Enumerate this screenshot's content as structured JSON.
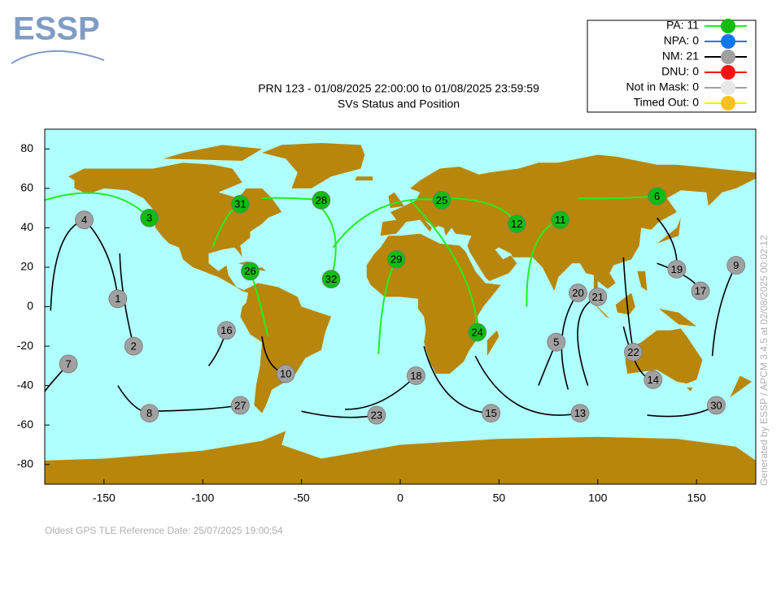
{
  "logo": "ESSP",
  "footer": "Oldest GPS TLE Reference Date: 25/07/2025 19:00:54",
  "side_note": "Generated by ESSP / APCM 3.4.5 at 02/08/2025 00:02:12",
  "chart_data": {
    "type": "scatter",
    "title": "PRN 123 - 01/08/2025 22:00:00 to 01/08/2025 23:59:59",
    "subtitle": "SVs Status and Position",
    "xlim": [
      -180,
      180
    ],
    "ylim": [
      -90,
      90
    ],
    "xticks": [
      -150,
      -100,
      -50,
      0,
      50,
      100,
      150
    ],
    "yticks": [
      -80,
      -60,
      -40,
      -20,
      0,
      20,
      40,
      60,
      80
    ],
    "background": "#b0ffff",
    "land_color": "#b8860b",
    "series": [
      {
        "name": "PA: 11",
        "color": "#11bb11",
        "line_color": "#22ee22",
        "labels": [
          "3",
          "31",
          "28",
          "26",
          "32",
          "29",
          "25",
          "12",
          "11",
          "6",
          "24"
        ],
        "x": [
          -127,
          -81,
          -40,
          -76,
          -35,
          -2,
          21,
          59,
          81,
          130,
          39
        ],
        "y": [
          45,
          52,
          54,
          18,
          14,
          24,
          54,
          42,
          44,
          56,
          -13
        ],
        "tracks": [
          {
            "x": [
              -180,
              -150,
              -127
            ],
            "y": [
              54,
              57,
              45
            ]
          },
          {
            "x": [
              -95,
              -88,
              -81
            ],
            "y": [
              30,
              45,
              52
            ]
          },
          {
            "x": [
              -70,
              -55,
              -40
            ],
            "y": [
              55,
              55,
              54
            ]
          },
          {
            "x": [
              -67,
              -72,
              -76
            ],
            "y": [
              -15,
              5,
              18
            ]
          },
          {
            "x": [
              -40,
              -33,
              -35
            ],
            "y": [
              50,
              35,
              14
            ]
          },
          {
            "x": [
              -11,
              -8,
              -2
            ],
            "y": [
              -24,
              5,
              24
            ]
          },
          {
            "x": [
              -34,
              -10,
              21
            ],
            "y": [
              30,
              50,
              54
            ]
          },
          {
            "x": [
              20,
              45,
              59
            ],
            "y": [
              55,
              52,
              42
            ]
          },
          {
            "x": [
              64,
              68,
              81
            ],
            "y": [
              0,
              30,
              44
            ]
          },
          {
            "x": [
              90,
              110,
              130
            ],
            "y": [
              55,
              55,
              56
            ]
          },
          {
            "x": [
              5,
              30,
              39
            ],
            "y": [
              54,
              20,
              -13
            ]
          }
        ]
      },
      {
        "name": "NPA: 0",
        "color": "#1177ee",
        "line_color": "#1177ee",
        "labels": [],
        "x": [],
        "y": [],
        "tracks": []
      },
      {
        "name": "NM: 21",
        "color": "#a0a0a0",
        "line_color": "#000000",
        "labels": [
          "4",
          "1",
          "2",
          "7",
          "16",
          "8",
          "27",
          "10",
          "23",
          "18",
          "15",
          "13",
          "5",
          "20",
          "21",
          "22",
          "14",
          "19",
          "17",
          "9",
          "30"
        ],
        "x": [
          -160,
          -143,
          -135,
          -168,
          -88,
          -127,
          -81,
          -58,
          -12,
          8,
          46,
          91,
          79,
          90,
          100,
          118,
          128,
          140,
          152,
          170,
          160
        ],
        "y": [
          44,
          4,
          -20,
          -29,
          -12,
          -54,
          -50,
          -34,
          -55,
          -35,
          -54,
          -54,
          -18,
          7,
          5,
          -23,
          -37,
          19,
          8,
          21,
          -50
        ],
        "tracks": [
          {
            "x": [
              -177,
              -172,
              -160
            ],
            "y": [
              -2,
              30,
              44
            ]
          },
          {
            "x": [
              -158,
              -148,
              -143
            ],
            "y": [
              42,
              25,
              4
            ]
          },
          {
            "x": [
              -142,
              -140,
              -135
            ],
            "y": [
              27,
              5,
              -20
            ]
          },
          {
            "x": [
              -180,
              -176,
              -168
            ],
            "y": [
              -43,
              -38,
              -29
            ]
          },
          {
            "x": [
              -97,
              -92,
              -88
            ],
            "y": [
              -30,
              -22,
              -12
            ]
          },
          {
            "x": [
              -143,
              -135,
              -127
            ],
            "y": [
              -40,
              -50,
              -54
            ]
          },
          {
            "x": [
              -125,
              -100,
              -81
            ],
            "y": [
              -53,
              -52,
              -50
            ]
          },
          {
            "x": [
              -70,
              -66,
              -58
            ],
            "y": [
              -15,
              -28,
              -34
            ]
          },
          {
            "x": [
              -50,
              -30,
              -12
            ],
            "y": [
              -53,
              -56,
              -55
            ]
          },
          {
            "x": [
              -28,
              -10,
              8
            ],
            "y": [
              -52,
              -48,
              -35
            ]
          },
          {
            "x": [
              12,
              25,
              46
            ],
            "y": [
              -20,
              -45,
              -54
            ]
          },
          {
            "x": [
              38,
              60,
              91
            ],
            "y": [
              -25,
              -50,
              -54
            ]
          },
          {
            "x": [
              70,
              74,
              79
            ],
            "y": [
              -40,
              -30,
              -18
            ]
          },
          {
            "x": [
              85,
              82,
              90
            ],
            "y": [
              -42,
              -15,
              7
            ]
          },
          {
            "x": [
              95,
              90,
              100
            ],
            "y": [
              -40,
              -10,
              5
            ]
          },
          {
            "x": [
              113,
              115,
              118
            ],
            "y": [
              25,
              0,
              -23
            ]
          },
          {
            "x": [
              113,
              120,
              128
            ],
            "y": [
              -10,
              -30,
              -37
            ]
          },
          {
            "x": [
              130,
              138,
              140
            ],
            "y": [
              45,
              32,
              19
            ]
          },
          {
            "x": [
              130,
              145,
              152
            ],
            "y": [
              22,
              15,
              8
            ]
          },
          {
            "x": [
              158,
              162,
              170
            ],
            "y": [
              -25,
              0,
              21
            ]
          },
          {
            "x": [
              125,
              145,
              160
            ],
            "y": [
              -55,
              -55,
              -50
            ]
          }
        ]
      },
      {
        "name": "DNU: 0",
        "color": "#ff1111",
        "line_color": "#ff1111",
        "labels": [],
        "x": [],
        "y": [],
        "tracks": []
      },
      {
        "name": "Not in Mask: 0",
        "color": "#e8e8e8",
        "line_color": "#a0a0a0",
        "labels": [],
        "x": [],
        "y": [],
        "tracks": []
      },
      {
        "name": "Timed Out: 0",
        "color": "#f8c020",
        "line_color": "#f0f000",
        "labels": [],
        "x": [],
        "y": [],
        "tracks": []
      }
    ]
  }
}
